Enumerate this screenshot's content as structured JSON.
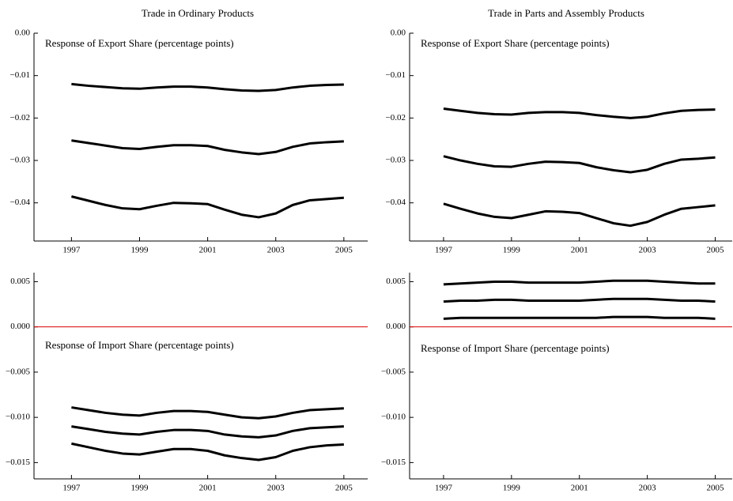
{
  "chart_data": [
    {
      "type": "line",
      "title": "Trade in Ordinary Products",
      "annotation": "Response of Export Share (percentage points)",
      "x": [
        1997,
        1997.5,
        1998,
        1998.5,
        1999,
        1999.5,
        2000,
        2000.5,
        2001,
        2001.5,
        2002,
        2002.5,
        2003,
        2003.5,
        2004,
        2004.5,
        2005
      ],
      "xlim": [
        1995.9,
        2005.7
      ],
      "xticks": [
        1997,
        1999,
        2001,
        2003,
        2005
      ],
      "ylim": [
        -0.049,
        0
      ],
      "yticks": [
        {
          "value": 0,
          "label": "0.00"
        },
        {
          "value": -0.01,
          "label": "−0.01"
        },
        {
          "value": -0.02,
          "label": "−0.02"
        },
        {
          "value": -0.03,
          "label": "−0.03"
        },
        {
          "value": -0.04,
          "label": "−0.04"
        }
      ],
      "series": [
        {
          "color": "#000000",
          "values": [
            -0.012,
            -0.0124,
            -0.0127,
            -0.013,
            -0.0131,
            -0.0128,
            -0.0126,
            -0.0126,
            -0.0128,
            -0.0132,
            -0.0135,
            -0.0136,
            -0.0134,
            -0.0128,
            -0.0124,
            -0.0122,
            -0.0121
          ]
        },
        {
          "color": "#000000",
          "values": [
            -0.0253,
            -0.0259,
            -0.0265,
            -0.0271,
            -0.0273,
            -0.0268,
            -0.0264,
            -0.0264,
            -0.0266,
            -0.0275,
            -0.0281,
            -0.0285,
            -0.028,
            -0.0268,
            -0.026,
            -0.0257,
            -0.0255
          ]
        },
        {
          "color": "#000000",
          "values": [
            -0.0385,
            -0.0395,
            -0.0405,
            -0.0413,
            -0.0415,
            -0.0407,
            -0.04,
            -0.0401,
            -0.0403,
            -0.0416,
            -0.0428,
            -0.0434,
            -0.0425,
            -0.0405,
            -0.0394,
            -0.0391,
            -0.0388
          ]
        }
      ]
    },
    {
      "type": "line",
      "title": "Trade in Parts and Assembly Products",
      "annotation": "Response of Export Share (percentage points)",
      "x": [
        1997,
        1997.5,
        1998,
        1998.5,
        1999,
        1999.5,
        2000,
        2000.5,
        2001,
        2001.5,
        2002,
        2002.5,
        2003,
        2003.5,
        2004,
        2004.5,
        2005
      ],
      "xlim": [
        1996.0,
        2005.5
      ],
      "xticks": [
        1997,
        1999,
        2001,
        2003,
        2005
      ],
      "ylim": [
        -0.049,
        0
      ],
      "yticks": [
        {
          "value": 0,
          "label": "0.00"
        },
        {
          "value": -0.01,
          "label": "−0.01"
        },
        {
          "value": -0.02,
          "label": "−0.02"
        },
        {
          "value": -0.03,
          "label": "−0.03"
        },
        {
          "value": -0.04,
          "label": "−0.04"
        }
      ],
      "series": [
        {
          "color": "#000000",
          "values": [
            -0.0178,
            -0.0183,
            -0.0188,
            -0.0191,
            -0.0192,
            -0.0188,
            -0.0186,
            -0.0186,
            -0.0188,
            -0.0193,
            -0.0197,
            -0.02,
            -0.0197,
            -0.0189,
            -0.0183,
            -0.0181,
            -0.018
          ]
        },
        {
          "color": "#000000",
          "values": [
            -0.029,
            -0.03,
            -0.0308,
            -0.0314,
            -0.0315,
            -0.0308,
            -0.0303,
            -0.0304,
            -0.0306,
            -0.0316,
            -0.0323,
            -0.0328,
            -0.0322,
            -0.0308,
            -0.0298,
            -0.0296,
            -0.0293
          ]
        },
        {
          "color": "#000000",
          "values": [
            -0.0402,
            -0.0414,
            -0.0425,
            -0.0433,
            -0.0436,
            -0.0428,
            -0.042,
            -0.0421,
            -0.0424,
            -0.0436,
            -0.0448,
            -0.0454,
            -0.0445,
            -0.0428,
            -0.0414,
            -0.041,
            -0.0406
          ]
        }
      ]
    },
    {
      "type": "line",
      "annotation": "Response of Import Share (percentage points)",
      "x": [
        1997,
        1997.5,
        1998,
        1998.5,
        1999,
        1999.5,
        2000,
        2000.5,
        2001,
        2001.5,
        2002,
        2002.5,
        2003,
        2003.5,
        2004,
        2004.5,
        2005
      ],
      "xlim": [
        1995.9,
        2005.7
      ],
      "xticks": [
        1997,
        1999,
        2001,
        2003,
        2005
      ],
      "ylim": [
        -0.0168,
        0.006
      ],
      "yticks": [
        0.005,
        {
          "value": 0,
          "label": "0.000"
        },
        {
          "value": -0.005,
          "label": "−0.005"
        },
        {
          "value": -0.01,
          "label": "−0.010"
        },
        {
          "value": -0.015,
          "label": "−0.015"
        }
      ],
      "hline": 0,
      "hline_color": "#dd0000",
      "series": [
        {
          "color": "#000000",
          "values": [
            -0.0089,
            -0.0092,
            -0.0095,
            -0.0097,
            -0.0098,
            -0.0095,
            -0.0093,
            -0.0093,
            -0.0094,
            -0.0097,
            -0.01,
            -0.0101,
            -0.0099,
            -0.0095,
            -0.0092,
            -0.0091,
            -0.009
          ]
        },
        {
          "color": "#000000",
          "values": [
            -0.011,
            -0.0113,
            -0.0116,
            -0.0118,
            -0.0119,
            -0.0116,
            -0.0114,
            -0.0114,
            -0.0115,
            -0.0119,
            -0.0121,
            -0.0122,
            -0.012,
            -0.0115,
            -0.0112,
            -0.0111,
            -0.011
          ]
        },
        {
          "color": "#000000",
          "values": [
            -0.0129,
            -0.0133,
            -0.0137,
            -0.014,
            -0.0141,
            -0.0138,
            -0.0135,
            -0.0135,
            -0.0137,
            -0.0142,
            -0.0145,
            -0.0147,
            -0.0144,
            -0.0137,
            -0.0133,
            -0.0131,
            -0.013
          ]
        }
      ]
    },
    {
      "type": "line",
      "annotation": "Response of Import Share (percentage points)",
      "x": [
        1997,
        1997.5,
        1998,
        1998.5,
        1999,
        1999.5,
        2000,
        2000.5,
        2001,
        2001.5,
        2002,
        2002.5,
        2003,
        2003.5,
        2004,
        2004.5,
        2005
      ],
      "xlim": [
        1996.0,
        2005.5
      ],
      "xticks": [
        1997,
        1999,
        2001,
        2003,
        2005
      ],
      "ylim": [
        -0.0168,
        0.006
      ],
      "yticks": [
        0.005,
        {
          "value": 0,
          "label": "0.000"
        },
        {
          "value": -0.005,
          "label": "−0.005"
        },
        {
          "value": -0.01,
          "label": "−0.010"
        },
        {
          "value": -0.015,
          "label": "−0.015"
        }
      ],
      "hline": 0,
      "hline_color": "#dd0000",
      "series": [
        {
          "color": "#000000",
          "values": [
            0.0047,
            0.0048,
            0.0049,
            0.005,
            0.005,
            0.0049,
            0.0049,
            0.0049,
            0.0049,
            0.005,
            0.0051,
            0.0051,
            0.0051,
            0.005,
            0.0049,
            0.0048,
            0.0048
          ]
        },
        {
          "color": "#000000",
          "values": [
            0.0028,
            0.0029,
            0.0029,
            0.003,
            0.003,
            0.0029,
            0.0029,
            0.0029,
            0.0029,
            0.003,
            0.0031,
            0.0031,
            0.0031,
            0.003,
            0.0029,
            0.0029,
            0.0028
          ]
        },
        {
          "color": "#000000",
          "values": [
            0.0009,
            0.001,
            0.001,
            0.001,
            0.001,
            0.001,
            0.001,
            0.001,
            0.001,
            0.001,
            0.0011,
            0.0011,
            0.0011,
            0.001,
            0.001,
            0.001,
            0.0009
          ]
        }
      ]
    }
  ]
}
